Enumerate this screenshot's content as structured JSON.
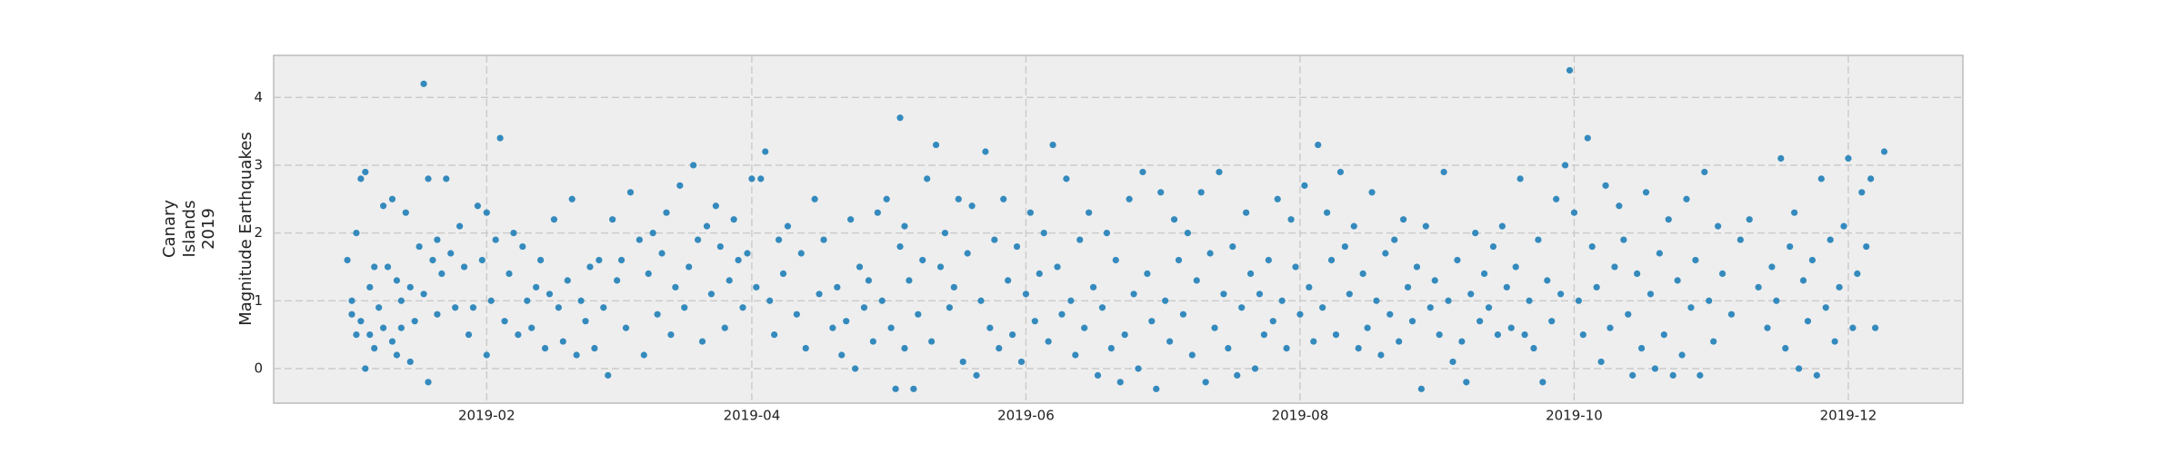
{
  "chart_data": {
    "type": "scatter",
    "ylabel": [
      "Canary",
      "Islands",
      "2019",
      "Magnitude Earthquakes"
    ],
    "color": "#348abd",
    "grid": true,
    "xlim": [
      -16.4,
      359.5
    ],
    "ylim": [
      -0.51,
      4.62
    ],
    "xticks": [
      {
        "value": 31,
        "label": "2019-02"
      },
      {
        "value": 90,
        "label": "2019-04"
      },
      {
        "value": 151,
        "label": "2019-06"
      },
      {
        "value": 212,
        "label": "2019-08"
      },
      {
        "value": 273,
        "label": "2019-10"
      },
      {
        "value": 334,
        "label": "2019-12"
      }
    ],
    "yticks": [
      0,
      1,
      2,
      3,
      4
    ],
    "x": [
      0,
      1,
      1,
      2,
      2,
      3,
      3,
      4,
      4,
      5,
      5,
      6,
      6,
      7,
      8,
      8,
      9,
      10,
      10,
      11,
      11,
      12,
      12,
      13,
      14,
      14,
      15,
      16,
      17,
      17,
      18,
      18,
      19,
      20,
      20,
      21,
      22,
      23,
      24,
      25,
      26,
      27,
      28,
      29,
      30,
      31,
      31,
      32,
      33,
      34,
      35,
      36,
      37,
      38,
      39,
      40,
      41,
      42,
      43,
      44,
      45,
      46,
      47,
      48,
      49,
      50,
      51,
      52,
      53,
      54,
      55,
      56,
      57,
      58,
      59,
      60,
      61,
      62,
      63,
      65,
      66,
      67,
      68,
      69,
      70,
      71,
      72,
      73,
      74,
      75,
      76,
      77,
      78,
      79,
      80,
      81,
      82,
      83,
      84,
      85,
      86,
      87,
      88,
      89,
      90,
      91,
      92,
      93,
      94,
      95,
      96,
      97,
      98,
      100,
      101,
      102,
      104,
      105,
      106,
      108,
      109,
      110,
      111,
      112,
      113,
      114,
      115,
      116,
      117,
      118,
      119,
      120,
      121,
      122,
      123,
      123,
      124,
      124,
      125,
      126,
      127,
      128,
      129,
      130,
      131,
      132,
      133,
      134,
      135,
      136,
      137,
      138,
      139,
      140,
      141,
      142,
      143,
      144,
      145,
      146,
      147,
      148,
      149,
      150,
      151,
      152,
      153,
      154,
      155,
      156,
      157,
      158,
      159,
      160,
      161,
      162,
      163,
      164,
      165,
      166,
      167,
      168,
      169,
      170,
      171,
      172,
      173,
      174,
      175,
      176,
      177,
      178,
      179,
      180,
      181,
      182,
      183,
      184,
      185,
      186,
      187,
      188,
      189,
      190,
      191,
      192,
      193,
      194,
      195,
      196,
      197,
      198,
      199,
      200,
      201,
      202,
      203,
      204,
      205,
      206,
      207,
      208,
      209,
      210,
      211,
      212,
      213,
      214,
      215,
      216,
      217,
      218,
      219,
      220,
      221,
      222,
      223,
      224,
      225,
      226,
      227,
      228,
      229,
      230,
      231,
      232,
      233,
      234,
      235,
      236,
      237,
      238,
      239,
      240,
      241,
      242,
      243,
      244,
      245,
      246,
      247,
      248,
      249,
      250,
      251,
      252,
      253,
      254,
      255,
      256,
      257,
      258,
      259,
      260,
      261,
      262,
      263,
      264,
      265,
      266,
      267,
      268,
      269,
      270,
      271,
      272,
      273,
      274,
      275,
      276,
      277,
      278,
      279,
      280,
      281,
      282,
      283,
      284,
      285,
      286,
      287,
      288,
      289,
      290,
      291,
      292,
      293,
      294,
      295,
      296,
      297,
      298,
      299,
      300,
      301,
      302,
      303,
      304,
      305,
      306,
      308,
      310,
      312,
      314,
      316,
      317,
      318,
      319,
      320,
      321,
      322,
      323,
      324,
      325,
      326,
      327,
      328,
      329,
      330,
      331,
      332,
      333,
      334,
      335,
      336,
      337,
      338,
      339,
      340,
      342
    ],
    "values": [
      1.6,
      0.8,
      1.0,
      2.0,
      0.5,
      2.8,
      0.7,
      2.9,
      0.0,
      1.2,
      0.5,
      1.5,
      0.3,
      0.9,
      2.4,
      0.6,
      1.5,
      2.5,
      0.4,
      1.3,
      0.2,
      1.0,
      0.6,
      2.3,
      0.1,
      1.2,
      0.7,
      1.8,
      4.2,
      1.1,
      -0.2,
      2.8,
      1.6,
      0.8,
      1.9,
      1.4,
      2.8,
      1.7,
      0.9,
      2.1,
      1.5,
      0.5,
      0.9,
      2.4,
      1.6,
      2.3,
      0.2,
      1.0,
      1.9,
      3.4,
      0.7,
      1.4,
      2.0,
      0.5,
      1.8,
      1.0,
      0.6,
      1.2,
      1.6,
      0.3,
      1.1,
      2.2,
      0.9,
      0.4,
      1.3,
      2.5,
      0.2,
      1.0,
      0.7,
      1.5,
      0.3,
      1.6,
      0.9,
      -0.1,
      2.2,
      1.3,
      1.6,
      0.6,
      2.6,
      1.9,
      0.2,
      1.4,
      2.0,
      0.8,
      1.7,
      2.3,
      0.5,
      1.2,
      2.7,
      0.9,
      1.5,
      3.0,
      1.9,
      0.4,
      2.1,
      1.1,
      2.4,
      1.8,
      0.6,
      1.3,
      2.2,
      1.6,
      0.9,
      1.7,
      2.8,
      1.2,
      2.8,
      3.2,
      1.0,
      0.5,
      1.9,
      1.4,
      2.1,
      0.8,
      1.7,
      0.3,
      2.5,
      1.1,
      1.9,
      0.6,
      1.2,
      0.2,
      0.7,
      2.2,
      0.0,
      1.5,
      0.9,
      1.3,
      0.4,
      2.3,
      1.0,
      2.5,
      0.6,
      -0.3,
      3.7,
      1.8,
      0.3,
      2.1,
      1.3,
      -0.3,
      0.8,
      1.6,
      2.8,
      0.4,
      3.3,
      1.5,
      2.0,
      0.9,
      1.2,
      2.5,
      0.1,
      1.7,
      2.4,
      -0.1,
      1.0,
      3.2,
      0.6,
      1.9,
      0.3,
      2.5,
      1.3,
      0.5,
      1.8,
      0.1,
      1.1,
      2.3,
      0.7,
      1.4,
      2.0,
      0.4,
      3.3,
      1.5,
      0.8,
      2.8,
      1.0,
      0.2,
      1.9,
      0.6,
      2.3,
      1.2,
      -0.1,
      0.9,
      2.0,
      0.3,
      1.6,
      -0.2,
      0.5,
      2.5,
      1.1,
      0.0,
      2.9,
      1.4,
      0.7,
      -0.3,
      2.6,
      1.0,
      0.4,
      2.2,
      1.6,
      0.8,
      2.0,
      0.2,
      1.3,
      2.6,
      -0.2,
      1.7,
      0.6,
      2.9,
      1.1,
      0.3,
      1.8,
      -0.1,
      0.9,
      2.3,
      1.4,
      0.0,
      1.1,
      0.5,
      1.6,
      0.7,
      2.5,
      1.0,
      0.3,
      2.2,
      1.5,
      0.8,
      2.7,
      1.2,
      0.4,
      3.3,
      0.9,
      2.3,
      1.6,
      0.5,
      2.9,
      1.8,
      1.1,
      2.1,
      0.3,
      1.4,
      0.6,
      2.6,
      1.0,
      0.2,
      1.7,
      0.8,
      1.9,
      0.4,
      2.2,
      1.2,
      0.7,
      1.5,
      -0.3,
      2.1,
      0.9,
      1.3,
      0.5,
      2.9,
      1.0,
      0.1,
      1.6,
      0.4,
      -0.2,
      1.1,
      2.0,
      0.7,
      1.4,
      0.9,
      1.8,
      0.5,
      2.1,
      1.2,
      0.6,
      1.5,
      2.8,
      0.5,
      1.0,
      0.3,
      1.9,
      -0.2,
      1.3,
      0.7,
      2.5,
      1.1,
      3.0,
      4.4,
      2.3,
      1.0,
      0.5,
      3.4,
      1.8,
      1.2,
      0.1,
      2.7,
      0.6,
      1.5,
      2.4,
      1.9,
      0.8,
      -0.1,
      1.4,
      0.3,
      2.6,
      1.1,
      0.0,
      1.7,
      0.5,
      2.2,
      -0.1,
      1.3,
      0.2,
      2.5,
      0.9,
      1.6,
      -0.1,
      2.9,
      1.0,
      0.4,
      2.1,
      1.4,
      0.8,
      1.9,
      2.2,
      1.2,
      0.6,
      1.5,
      1.0,
      3.1,
      0.3,
      1.8,
      2.3,
      0.0,
      1.3,
      0.7,
      1.6,
      -0.1,
      2.8,
      0.9,
      1.9,
      0.4,
      1.2,
      2.1,
      3.1,
      0.6,
      1.4,
      2.6,
      1.8,
      2.8,
      0.6,
      3.2
    ]
  }
}
